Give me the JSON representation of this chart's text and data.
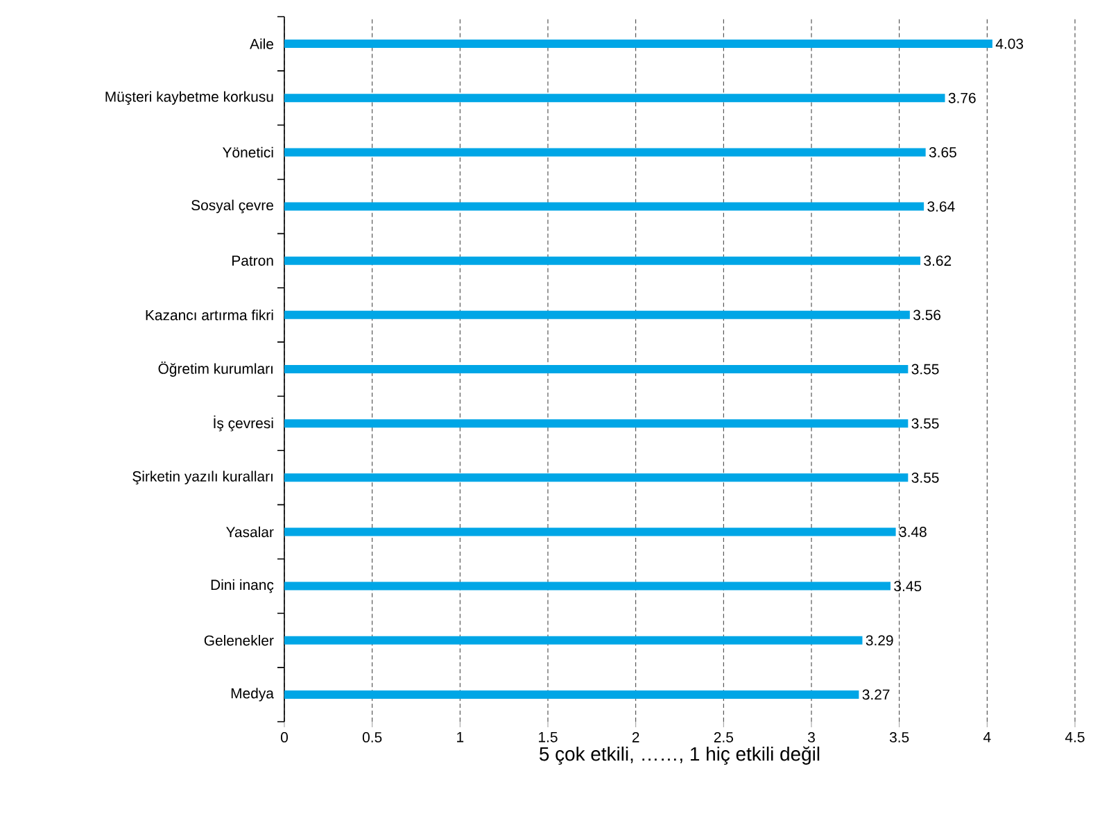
{
  "chart_data": {
    "type": "bar",
    "orientation": "horizontal",
    "categories": [
      "Aile",
      "Müşteri kaybetme korkusu",
      "Yönetici",
      "Sosyal çevre",
      "Patron",
      "Kazancı artırma fikri",
      "Öğretim kurumları",
      "İş çevresi",
      "Şirketin yazılı kuralları",
      "Yasalar",
      "Dini inanç",
      "Gelenekler",
      "Medya"
    ],
    "values": [
      4.03,
      3.76,
      3.65,
      3.64,
      3.62,
      3.56,
      3.55,
      3.55,
      3.55,
      3.48,
      3.45,
      3.29,
      3.27
    ],
    "color": "#00a6e6",
    "xlabel": "5 çok etkili, ……, 1 hiç etkili değil",
    "xlim": [
      0,
      4.5
    ],
    "xticks": [
      0,
      0.5,
      1,
      1.5,
      2,
      2.5,
      3,
      3.5,
      4,
      4.5
    ],
    "grid": "x",
    "data_labels": true
  }
}
